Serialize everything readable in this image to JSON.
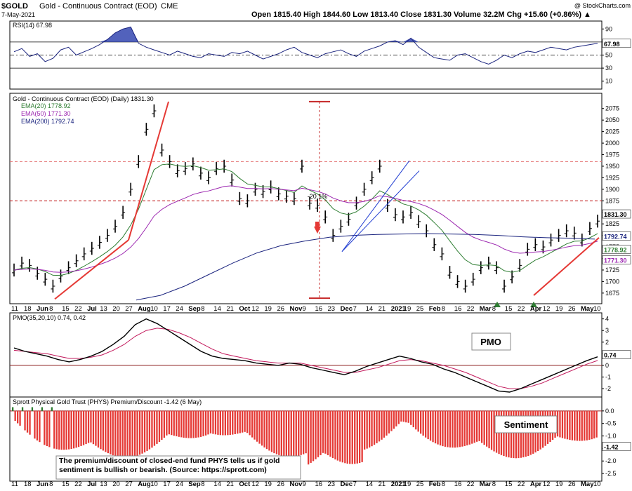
{
  "header": {
    "symbol": "$GOLD",
    "name": "Gold - Continuous Contract (EOD)",
    "exchange": "CME",
    "date": "7-May-2021",
    "stats": "Open 1815.40  High 1844.60  Low 1813.40  Close 1831.30  Volume 32.2M  Chg +15.60 (+0.86%) ▲",
    "watermark": "@ StockCharts.com"
  },
  "chart_data": [
    {
      "panel": "rsi",
      "type": "line",
      "title": "RSI(14) 67.98",
      "ylim": [
        0,
        100
      ],
      "y_ticks": [
        90,
        70,
        50,
        30,
        10
      ],
      "levels": [
        70,
        50,
        30
      ],
      "current_value": "67.98",
      "values": [
        55,
        60,
        48,
        52,
        40,
        45,
        58,
        62,
        50,
        55,
        60,
        66,
        74,
        84,
        90,
        93,
        68,
        62,
        58,
        54,
        50,
        56,
        52,
        48,
        46,
        52,
        50,
        48,
        54,
        52,
        56,
        50,
        44,
        48,
        52,
        58,
        62,
        54,
        50,
        46,
        52,
        55,
        58,
        52,
        48,
        56,
        60,
        64,
        70,
        72,
        66,
        76,
        62,
        54,
        46,
        44,
        42,
        50,
        52,
        46,
        40,
        36,
        42,
        50,
        46,
        52,
        56,
        54,
        58,
        62,
        60,
        58,
        62,
        64,
        66,
        68
      ]
    },
    {
      "panel": "price",
      "type": "candlestick",
      "title": "Gold - Continuous Contract (EOD) (Daily) 1831.30",
      "ylim": [
        1655,
        2105
      ],
      "y_ticks": [
        2075,
        2050,
        2025,
        2000,
        1975,
        1950,
        1925,
        1900,
        1875,
        1850,
        1825,
        1800,
        1775,
        1750,
        1725,
        1700,
        1675
      ],
      "x_labels": [
        "11",
        "18",
        "Jun",
        "8",
        "15",
        "22",
        "Jul",
        "13",
        "20",
        "27",
        "Aug",
        "10",
        "17",
        "24",
        "Sep",
        "8",
        "14",
        "21",
        "Oct",
        "12",
        "19",
        "26",
        "Nov",
        "9",
        "16",
        "23",
        "Dec",
        "7",
        "14",
        "21",
        "2021",
        "19",
        "25",
        "Feb",
        "8",
        "16",
        "22",
        "Mar",
        "8",
        "15",
        "22",
        "Apr",
        "12",
        "19",
        "26",
        "May",
        "10"
      ],
      "series": [
        {
          "name": "EMA(20) 1778.92",
          "color": "#2e7d32"
        },
        {
          "name": "EMA(50) 1771.30",
          "color": "#9c27b0"
        },
        {
          "name": "EMA(200) 1792.74",
          "color": "#1a237e"
        }
      ],
      "close_values": [
        1725,
        1740,
        1735,
        1718,
        1705,
        1690,
        1712,
        1730,
        1745,
        1760,
        1772,
        1785,
        1800,
        1820,
        1850,
        1900,
        1960,
        2030,
        2070,
        1985,
        1960,
        1940,
        1945,
        1955,
        1935,
        1925,
        1945,
        1950,
        1920,
        1880,
        1875,
        1900,
        1895,
        1905,
        1890,
        1885,
        1880,
        1950,
        1870,
        1865,
        1840,
        1800,
        1820,
        1835,
        1870,
        1900,
        1925,
        1950,
        1865,
        1845,
        1840,
        1850,
        1830,
        1810,
        1780,
        1760,
        1720,
        1700,
        1690,
        1705,
        1730,
        1740,
        1730,
        1690,
        1710,
        1735,
        1770,
        1780,
        1775,
        1790,
        1800,
        1810,
        1805,
        1790,
        1815,
        1831
      ],
      "ema200": [
        1660,
        1670,
        1690,
        1715,
        1740,
        1762,
        1778,
        1788,
        1796,
        1800,
        1802,
        1803,
        1804,
        1803,
        1802,
        1800,
        1797,
        1795,
        1794,
        1792
      ],
      "horizontal_levels": [
        1875,
        1960
      ],
      "annotation": "-20.1%",
      "current_labels": [
        "1831.30",
        "1792.74",
        "1778.92",
        "1771.30"
      ]
    },
    {
      "panel": "pmo",
      "type": "line",
      "title": "PMO(35,20,10) 0.74, 0.42",
      "ylim": [
        -2.6,
        4.4
      ],
      "y_ticks": [
        4,
        3,
        2,
        1,
        0,
        -1,
        -2
      ],
      "label": "PMO",
      "current_value": "0.74",
      "pmo": [
        1.5,
        1.2,
        1.0,
        0.8,
        0.5,
        0.3,
        0.5,
        0.8,
        1.2,
        1.8,
        2.5,
        3.5,
        4.0,
        3.6,
        3.0,
        2.4,
        1.8,
        1.2,
        0.8,
        0.6,
        0.5,
        0.4,
        0.2,
        0.1,
        0.0,
        0.2,
        0.1,
        -0.2,
        -0.4,
        -0.6,
        -0.8,
        -0.5,
        -0.1,
        0.2,
        0.5,
        0.8,
        0.6,
        0.3,
        0.1,
        -0.3,
        -0.6,
        -1.0,
        -1.4,
        -1.8,
        -2.2,
        -2.3,
        -2.0,
        -1.6,
        -1.2,
        -0.8,
        -0.4,
        0.0,
        0.4,
        0.74
      ],
      "signal": [
        1.3,
        1.2,
        1.1,
        1.0,
        0.8,
        0.6,
        0.6,
        0.7,
        0.9,
        1.3,
        1.8,
        2.5,
        3.0,
        3.2,
        3.1,
        2.8,
        2.4,
        1.9,
        1.4,
        1.0,
        0.8,
        0.6,
        0.4,
        0.3,
        0.2,
        0.2,
        0.2,
        0.0,
        -0.2,
        -0.4,
        -0.6,
        -0.6,
        -0.4,
        -0.2,
        0.1,
        0.4,
        0.5,
        0.4,
        0.2,
        0.0,
        -0.3,
        -0.6,
        -1.0,
        -1.4,
        -1.8,
        -2.0,
        -2.0,
        -1.8,
        -1.5,
        -1.1,
        -0.7,
        -0.3,
        0.1,
        0.42
      ]
    },
    {
      "panel": "sentiment",
      "type": "bar",
      "title": "Sprott Physical Gold Trust (PHYS) Premium/Discount -1.42 (6 May)",
      "ylim": [
        -2.75,
        0.5
      ],
      "y_ticks": [
        0.0,
        -0.5,
        -1.0,
        -1.5,
        -2.0,
        -2.5
      ],
      "label": "Sentiment",
      "current_value": "-1.42",
      "x_labels": [
        "11",
        "18",
        "Jun",
        "8",
        "15",
        "22",
        "Jul",
        "13",
        "20",
        "27",
        "Aug",
        "10",
        "17",
        "24",
        "Sep",
        "8",
        "14",
        "21",
        "Oct",
        "12",
        "19",
        "26",
        "Nov",
        "9",
        "16",
        "23",
        "Dec",
        "7",
        "14",
        "21",
        "2021",
        "19",
        "25",
        "Feb",
        "8",
        "16",
        "22",
        "Mar",
        "8",
        "15",
        "22",
        "Apr",
        "12",
        "19",
        "26",
        "May",
        "10"
      ],
      "note": "The premium/discount of closed-end fund PHYS tells us if gold sentiment is bullish or bearish. (Source: https://sprott.com)"
    }
  ]
}
